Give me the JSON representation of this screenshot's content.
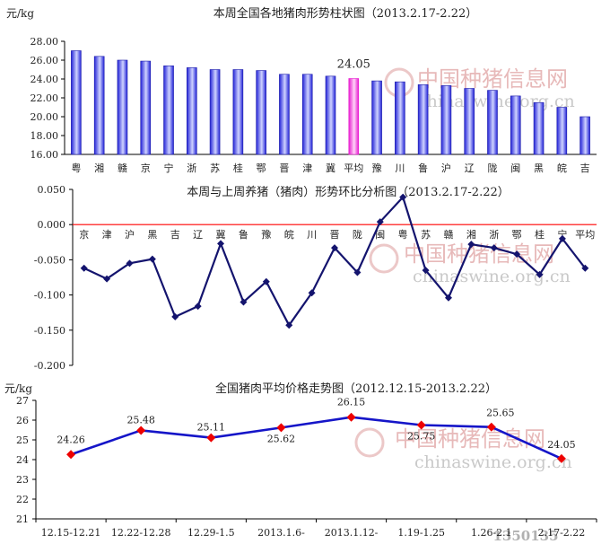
{
  "watermark": {
    "cn": "中国种猪信息网",
    "en": "chinaswine.org.cn"
  },
  "corner_mark": "1350135",
  "chart_data": [
    {
      "type": "bar",
      "title": "本周全国各地猪肉形势柱状图（2013.2.17-2.22）",
      "unit": "元/kg",
      "categories": [
        "粤",
        "湘",
        "赣",
        "京",
        "宁",
        "浙",
        "苏",
        "桂",
        "鄂",
        "晋",
        "津",
        "冀",
        "平均",
        "豫",
        "川",
        "鲁",
        "沪",
        "辽",
        "陇",
        "闽",
        "黑",
        "皖",
        "吉"
      ],
      "values": [
        27.0,
        26.4,
        26.0,
        25.9,
        25.4,
        25.2,
        25.0,
        25.0,
        24.9,
        24.5,
        24.5,
        24.3,
        24.05,
        23.8,
        23.7,
        23.4,
        23.3,
        23.0,
        22.8,
        22.2,
        21.5,
        21.0,
        20.0
      ],
      "highlight": "平均",
      "highlight_label": "24.05",
      "ylim": [
        16,
        28
      ],
      "yticks": [
        "28.00",
        "26.00",
        "24.00",
        "22.00",
        "20.00",
        "18.00",
        "16.00"
      ],
      "colors": {
        "bar": "#2323d8",
        "bar_light": "#cfd3ff",
        "highlight": "#e81bd0",
        "highlight_light": "#ffd5f7"
      }
    },
    {
      "type": "line",
      "title": "本周与上周养猪（猪肉）形势环比分析图（2013.2.17-2.22）",
      "categories": [
        "京",
        "津",
        "沪",
        "黑",
        "吉",
        "辽",
        "冀",
        "鲁",
        "豫",
        "皖",
        "川",
        "晋",
        "陇",
        "闽",
        "粤",
        "苏",
        "赣",
        "湘",
        "浙",
        "鄂",
        "桂",
        "宁",
        "平均"
      ],
      "values": [
        -0.062,
        -0.077,
        -0.055,
        -0.049,
        -0.131,
        -0.116,
        -0.027,
        -0.11,
        -0.081,
        -0.143,
        -0.097,
        -0.033,
        -0.068,
        0.004,
        0.039,
        -0.065,
        -0.104,
        -0.028,
        -0.033,
        -0.042,
        -0.071,
        -0.02,
        -0.062
      ],
      "ylim": [
        -0.2,
        0.05
      ],
      "yticks": [
        "0.050",
        "0.000",
        "-0.050",
        "-0.100",
        "-0.150",
        "-0.200"
      ],
      "colors": {
        "line": "#14146e",
        "zero_line": "#ff0000"
      }
    },
    {
      "type": "line",
      "title": "全国猪肉平均价格走势图（2012.12.15-2013.2.22）",
      "unit": "元/kg",
      "categories": [
        "12.15-12.21",
        "12.22-12.28",
        "12.29-1.5",
        "2013.1.6-",
        "2013.1.12-",
        "1.19-1.25",
        "1.26-2.1",
        "2.17-2.22"
      ],
      "values": [
        24.26,
        25.48,
        25.11,
        25.62,
        26.15,
        25.75,
        25.65,
        24.05
      ],
      "data_labels": [
        "24.26",
        "25.48",
        "25.11",
        "25.62",
        "26.15",
        "25.75",
        "25.65",
        "24.05"
      ],
      "ylim": [
        21,
        27
      ],
      "yticks": [
        "27",
        "26",
        "25",
        "24",
        "23",
        "22",
        "21"
      ],
      "colors": {
        "line": "#1515c8",
        "marker": "#ee0000"
      }
    }
  ]
}
